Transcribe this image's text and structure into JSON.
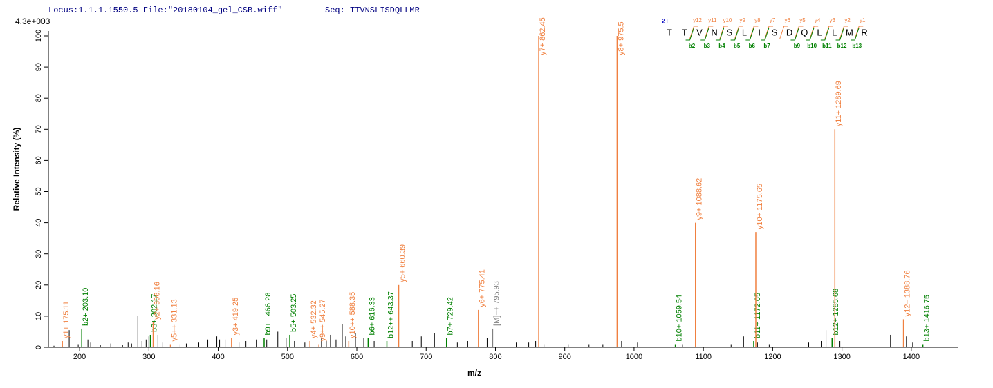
{
  "chart_data": {
    "type": "spectrum",
    "header": {
      "locus": "Locus:1.1.1.1550.5 File:\"20180104_gel_CSB.wiff\"",
      "seq": "Seq: TTVNSLISDQLLMR"
    },
    "intensity_scale": "4.3e+003",
    "xlabel": "m/z",
    "ylabel": "Relative   Intensity (%)",
    "xlim": [
      155,
      1467
    ],
    "ylim": [
      0,
      100
    ],
    "xticks": [
      200,
      300,
      400,
      500,
      600,
      700,
      800,
      900,
      1000,
      1100,
      1200,
      1300,
      1400
    ],
    "yticks": [
      0,
      10,
      20,
      30,
      40,
      50,
      60,
      70,
      80,
      90,
      100
    ],
    "peaks": {
      "color": "#000000",
      "x": [
        163,
        175,
        185,
        198,
        212,
        216,
        230,
        245,
        262,
        270,
        275,
        284,
        290,
        296,
        300,
        313,
        320,
        345,
        354,
        368,
        372,
        385,
        398,
        402,
        410,
        430,
        440,
        455,
        470,
        486,
        498,
        510,
        525,
        549,
        556,
        562,
        570,
        579,
        584,
        598,
        610,
        625,
        680,
        693,
        712,
        745,
        760,
        788,
        830,
        848,
        858,
        870,
        905,
        935,
        955,
        982,
        1005,
        1070,
        1140,
        1158,
        1178,
        1195,
        1245,
        1252,
        1270,
        1277,
        1297,
        1370,
        1393,
        1402
      ],
      "values": [
        0.5,
        1,
        5.5,
        1,
        2.5,
        1.5,
        0.8,
        1.2,
        0.8,
        1.5,
        1.2,
        10,
        2,
        2.5,
        3.5,
        4,
        1.5,
        1,
        1.2,
        2.5,
        1.5,
        2.5,
        3.5,
        2.5,
        2.5,
        1.5,
        2,
        2.5,
        2.5,
        5,
        3,
        2,
        1.5,
        3,
        2,
        4,
        2.5,
        7.5,
        3.5,
        4.5,
        3,
        2,
        2,
        3.5,
        4.5,
        1.5,
        2,
        3,
        1.5,
        1.5,
        2,
        1,
        1,
        1,
        1,
        2,
        1.5,
        1,
        1,
        3.5,
        1.5,
        1,
        2,
        1.5,
        2,
        5.5,
        2,
        4,
        3.5,
        1.5
      ]
    },
    "annotated_peaks": {
      "x": [
        175.11,
        203.1,
        302.17,
        306.16,
        331.13,
        419.25,
        466.28,
        503.25,
        532.32,
        545.27,
        588.35,
        616.33,
        643.37,
        660.39,
        729.42,
        775.41,
        795.93,
        862.45,
        975.5,
        1059.54,
        1088.62,
        1172.65,
        1175.65,
        1285.68,
        1289.69,
        1388.76,
        1416.75
      ],
      "values": [
        2,
        6,
        4,
        8,
        1,
        3,
        3,
        4,
        2,
        1,
        2,
        3,
        2,
        20,
        3,
        12,
        6,
        100,
        100,
        1,
        40,
        2,
        37,
        3,
        70,
        9,
        1
      ],
      "labels": [
        "y1+ 175.11",
        "b2+ 203.10",
        "b3+ 302.17",
        "y2+ 306.16",
        "y5++ 331.13",
        "y3+ 419.25",
        "b9++ 466.28",
        "b5+ 503.25",
        "y4+ 532.32",
        "y9++ 545.27",
        "y10++ 588.35",
        "b6+ 616.33",
        "b12++ 643.37",
        "y5+ 660.39",
        "b7+ 729.42",
        "y6+ 775.41",
        "[M]++ 795.93",
        "y7+ 862.45",
        "y8+ 975.5",
        "b10+ 1059.54",
        "y9+ 1088.62",
        "b11+ 1172.65",
        "y10+ 1175.65",
        "b12+ 1285.68",
        "y11+ 1289.69",
        "y12+ 1388.76",
        "b13+ 1416.75"
      ],
      "colors": [
        "#f08040",
        "#008000",
        "#008000",
        "#f08040",
        "#f08040",
        "#f08040",
        "#008000",
        "#008000",
        "#f08040",
        "#f08040",
        "#f08040",
        "#008000",
        "#008000",
        "#f08040",
        "#008000",
        "#f08040",
        "#808080",
        "#f08040",
        "#f08040",
        "#008000",
        "#f08040",
        "#008000",
        "#f08040",
        "#008000",
        "#f08040",
        "#f08040",
        "#008000"
      ]
    },
    "sequence": {
      "charge": "2+",
      "residues": [
        "T",
        "T",
        "V",
        "N",
        "S",
        "L",
        "I",
        "S",
        "D",
        "Q",
        "L",
        "L",
        "M",
        "R"
      ],
      "y_ions": [
        "y12",
        "y11",
        "y10",
        "y9",
        "y8",
        "y7",
        "y6",
        "y5",
        "y4",
        "y3",
        "y2",
        "y1"
      ],
      "b_ions": [
        "b2",
        "b3",
        "b4",
        "b5",
        "b6",
        "b7",
        "b9",
        "b10",
        "b11",
        "b12",
        "b13"
      ],
      "y_color": "#f08040",
      "b_color": "#008000"
    }
  }
}
